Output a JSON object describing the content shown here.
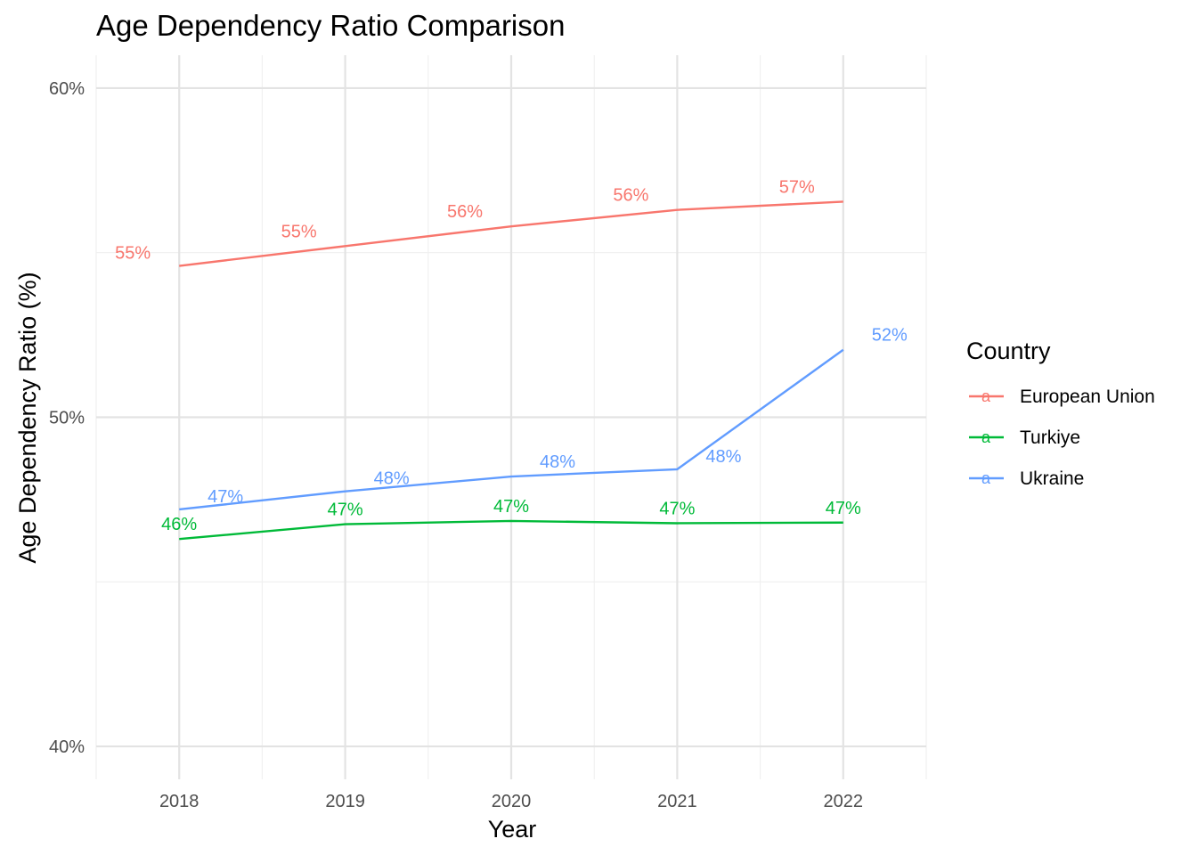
{
  "chart_data": {
    "type": "line",
    "title": "Age Dependency Ratio Comparison",
    "xlabel": "Year",
    "ylabel": "Age Dependency Ratio (%)",
    "x": [
      2018,
      2019,
      2020,
      2021,
      2022
    ],
    "xlim": [
      2017.5,
      2022.5
    ],
    "ylim": [
      39,
      61
    ],
    "yticks": [
      40,
      50,
      60
    ],
    "ytick_labels": [
      "40%",
      "50%",
      "60%"
    ],
    "xtick_labels": [
      "2018",
      "2019",
      "2020",
      "2021",
      "2022"
    ],
    "grid": true,
    "legend": {
      "title": "Country",
      "position": "right"
    },
    "series": [
      {
        "name": "European Union",
        "color": "#F8766D",
        "values": [
          54.6,
          55.2,
          55.8,
          56.3,
          56.55
        ],
        "labels": [
          "55%",
          "55%",
          "56%",
          "56%",
          "57%"
        ]
      },
      {
        "name": "Turkiye",
        "color": "#00BA38",
        "values": [
          46.3,
          46.75,
          46.85,
          46.78,
          46.8
        ],
        "labels": [
          "46%",
          "47%",
          "47%",
          "47%",
          "47%"
        ]
      },
      {
        "name": "Ukraine",
        "color": "#619CFF",
        "values": [
          47.2,
          47.75,
          48.2,
          48.42,
          52.05
        ],
        "labels": [
          "47%",
          "48%",
          "48%",
          "48%",
          "52%"
        ]
      }
    ]
  }
}
